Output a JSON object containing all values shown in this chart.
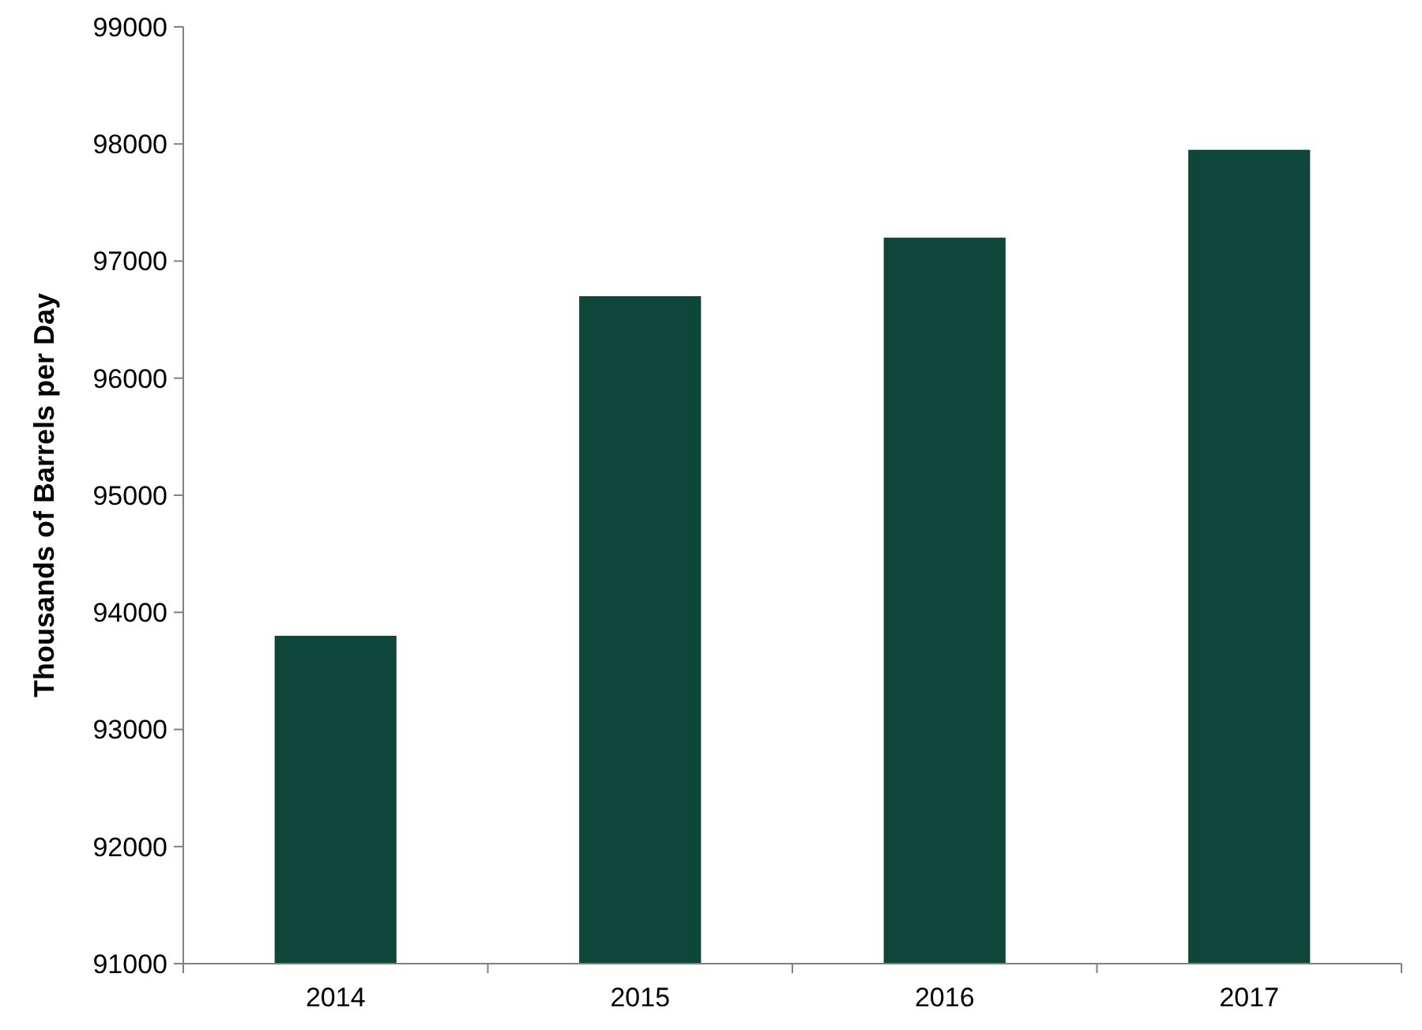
{
  "chart_data": {
    "type": "bar",
    "ylabel": "Thousands of Barrels per Day",
    "categories": [
      "2014",
      "2015",
      "2016",
      "2017"
    ],
    "values": [
      93800,
      96700,
      97200,
      97950
    ],
    "color": "#0e4739",
    "ylim": [
      91000,
      99000
    ],
    "yticks": [
      91000,
      92000,
      93000,
      94000,
      95000,
      96000,
      97000,
      98000,
      99000
    ],
    "grid": false
  }
}
